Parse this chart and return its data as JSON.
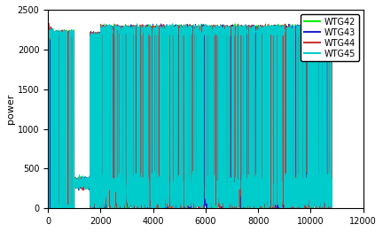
{
  "title": "",
  "ylabel": "power",
  "xlabel": "",
  "xlim": [
    0,
    12000
  ],
  "ylim": [
    0,
    2500
  ],
  "xticks": [
    0,
    2000,
    4000,
    6000,
    8000,
    10000,
    12000
  ],
  "yticks": [
    0,
    500,
    1000,
    1500,
    2000,
    2500
  ],
  "legend_labels": [
    "WTG42",
    "WTG43",
    "WTG44",
    "WTG45"
  ],
  "colors": [
    "#00ee00",
    "#2222cc",
    "#cc3333",
    "#00cccc"
  ],
  "n_points": 10800,
  "max_power": 2310,
  "background_color": "#ffffff",
  "linewidth": 0.5,
  "seed": 42
}
